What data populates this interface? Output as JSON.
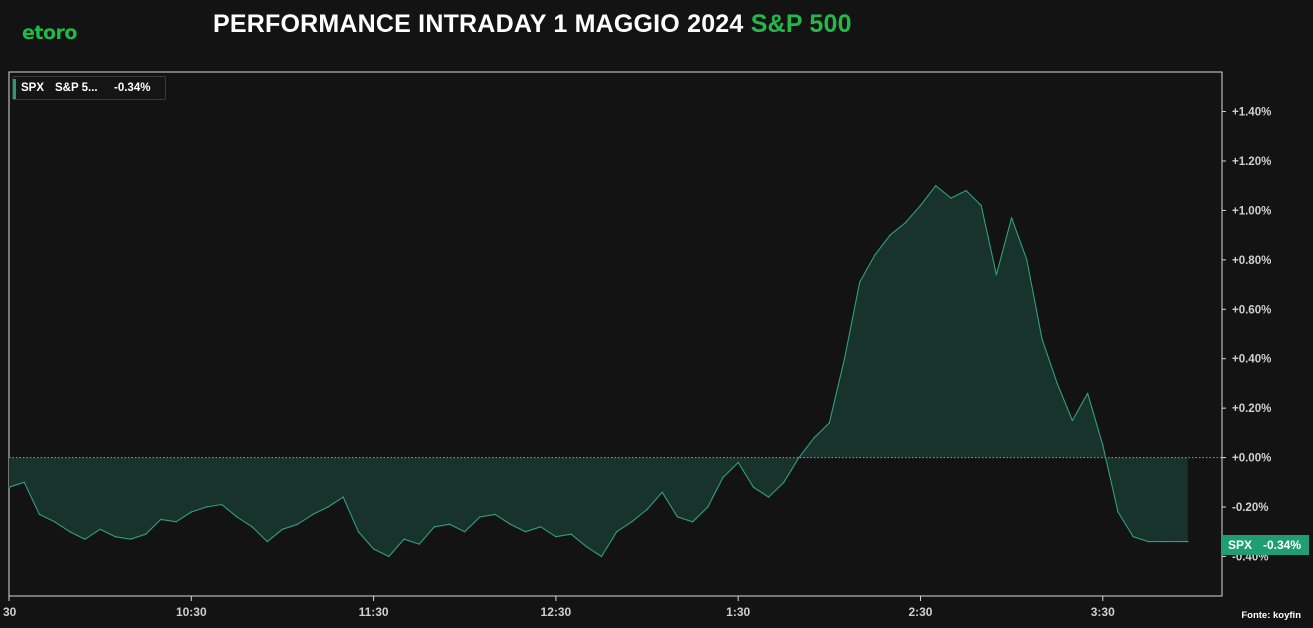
{
  "header": {
    "logo_text": "etoro",
    "title_main": "PERFORMANCE INTRADAY 1 MAGGIO 2024",
    "title_highlight": "S&P 500"
  },
  "legend": {
    "ticker": "SPX",
    "name": "S&P 5...",
    "change": "-0.34%"
  },
  "badge": {
    "ticker": "SPX",
    "change": "-0.34%"
  },
  "source": "Fonte: koyfin",
  "colors": {
    "background": "#131313",
    "accent_green": "#21b94a",
    "line": "#2f9f79",
    "fill": "#18332b",
    "badge_bg": "#1f9e74",
    "axis": "#cfcfcf"
  },
  "chart_data": {
    "type": "area",
    "title": "PERFORMANCE INTRADAY 1 MAGGIO 2024 S&P 500",
    "xlabel": "",
    "ylabel": "",
    "x_tick_labels": [
      "30",
      "10:30",
      "11:30",
      "12:30",
      "1:30",
      "2:30",
      "3:30"
    ],
    "y_tick_labels": [
      "-0.40%",
      "-0.20%",
      "+0.00%",
      "+0.20%",
      "+0.40%",
      "+0.60%",
      "+0.80%",
      "+1.00%",
      "+1.20%",
      "+1.40%"
    ],
    "y_ticks": [
      -0.4,
      -0.2,
      0.0,
      0.2,
      0.4,
      0.6,
      0.8,
      1.0,
      1.2,
      1.4
    ],
    "ylim": [
      -0.56,
      1.56
    ],
    "xlim": [
      "09:30",
      "16:02"
    ],
    "baseline": 0.0,
    "grid": false,
    "series": [
      {
        "name": "SPX",
        "x": [
          "09:30",
          "09:35",
          "09:40",
          "09:45",
          "09:50",
          "09:55",
          "10:00",
          "10:05",
          "10:10",
          "10:15",
          "10:20",
          "10:25",
          "10:30",
          "10:35",
          "10:40",
          "10:45",
          "10:50",
          "10:55",
          "11:00",
          "11:05",
          "11:10",
          "11:15",
          "11:20",
          "11:25",
          "11:30",
          "11:35",
          "11:40",
          "11:45",
          "11:50",
          "11:55",
          "12:00",
          "12:05",
          "12:10",
          "12:15",
          "12:20",
          "12:25",
          "12:30",
          "12:35",
          "12:40",
          "12:45",
          "12:50",
          "12:55",
          "13:00",
          "13:05",
          "13:10",
          "13:15",
          "13:20",
          "13:25",
          "13:30",
          "13:35",
          "13:40",
          "13:45",
          "13:50",
          "13:55",
          "14:00",
          "14:05",
          "14:10",
          "14:15",
          "14:20",
          "14:25",
          "14:30",
          "14:35",
          "14:40",
          "14:45",
          "14:50",
          "14:55",
          "15:00",
          "15:05",
          "15:10",
          "15:15",
          "15:20",
          "15:25",
          "15:30",
          "15:35",
          "15:40",
          "15:45",
          "15:50",
          "15:55",
          "15:58"
        ],
        "values": [
          -0.12,
          -0.1,
          -0.23,
          -0.26,
          -0.3,
          -0.33,
          -0.29,
          -0.32,
          -0.33,
          -0.31,
          -0.25,
          -0.26,
          -0.22,
          -0.2,
          -0.19,
          -0.24,
          -0.28,
          -0.34,
          -0.29,
          -0.27,
          -0.23,
          -0.2,
          -0.16,
          -0.3,
          -0.37,
          -0.4,
          -0.33,
          -0.35,
          -0.28,
          -0.27,
          -0.3,
          -0.24,
          -0.23,
          -0.27,
          -0.3,
          -0.28,
          -0.32,
          -0.31,
          -0.36,
          -0.4,
          -0.3,
          -0.26,
          -0.21,
          -0.14,
          -0.24,
          -0.26,
          -0.2,
          -0.08,
          -0.02,
          -0.12,
          -0.16,
          -0.1,
          0.0,
          0.08,
          0.14,
          0.4,
          0.71,
          0.82,
          0.9,
          0.95,
          1.02,
          1.1,
          1.05,
          1.08,
          1.02,
          0.74,
          0.97,
          0.8,
          0.48,
          0.3,
          0.15,
          0.26,
          0.05,
          -0.22,
          -0.32,
          -0.34,
          -0.34,
          -0.34,
          -0.34
        ]
      }
    ]
  }
}
